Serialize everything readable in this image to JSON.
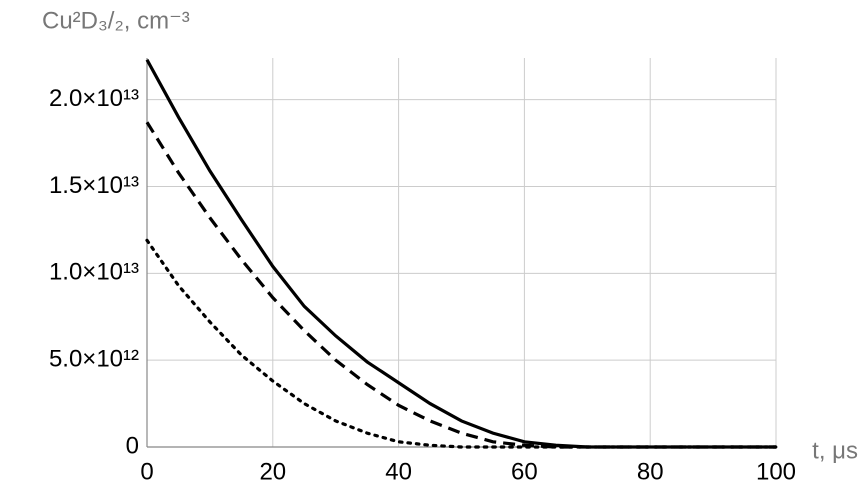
{
  "chart_data": {
    "type": "line",
    "ylabel": "Cu²D₃/₂, cm⁻³",
    "xlabel": "t, μs",
    "x": [
      0,
      5,
      10,
      15,
      20,
      25,
      30,
      35,
      40,
      45,
      50,
      55,
      60,
      65,
      70,
      75,
      80,
      85,
      90,
      95,
      100
    ],
    "series": [
      {
        "color": "#000000",
        "dash": "solid",
        "values": [
          22300000000000.0,
          19000000000000.0,
          15900000000000.0,
          13100000000000.0,
          10400000000000.0,
          8100000000000.0,
          6400000000000.0,
          4900000000000.0,
          3700000000000.0,
          2500000000000.0,
          1500000000000.0,
          800000000000.0,
          300000000000.0,
          100000000000.0,
          0,
          0,
          0,
          0,
          0,
          0,
          0
        ]
      },
      {
        "color": "#000000",
        "dash": "dashed",
        "values": [
          18700000000000.0,
          15800000000000.0,
          13200000000000.0,
          10800000000000.0,
          8600000000000.0,
          6700000000000.0,
          5000000000000.0,
          3600000000000.0,
          2400000000000.0,
          1500000000000.0,
          800000000000.0,
          300000000000.0,
          100000000000.0,
          0,
          0,
          0,
          0,
          0,
          0,
          0,
          0
        ]
      },
      {
        "color": "#000000",
        "dash": "dotted",
        "values": [
          11900000000000.0,
          9300000000000.0,
          7200000000000.0,
          5300000000000.0,
          3800000000000.0,
          2500000000000.0,
          1500000000000.0,
          800000000000.0,
          300000000000.0,
          100000000000.0,
          0,
          0,
          0,
          0,
          0,
          0,
          0,
          0,
          0,
          0,
          0
        ]
      }
    ],
    "xlim": [
      0,
      100
    ],
    "xticks": [
      0,
      20,
      40,
      60,
      80,
      100
    ],
    "ylim": [
      0,
      22400000000000.0
    ],
    "yticks": [
      0,
      {
        "value": 5000000000000.0,
        "label": "5.0×10¹²"
      },
      {
        "value": 10000000000000.0,
        "label": "1.0×10¹³"
      },
      {
        "value": 15000000000000.0,
        "label": "1.5×10¹³"
      },
      {
        "value": 20000000000000.0,
        "label": "2.0×10¹³"
      }
    ],
    "grid": true
  }
}
